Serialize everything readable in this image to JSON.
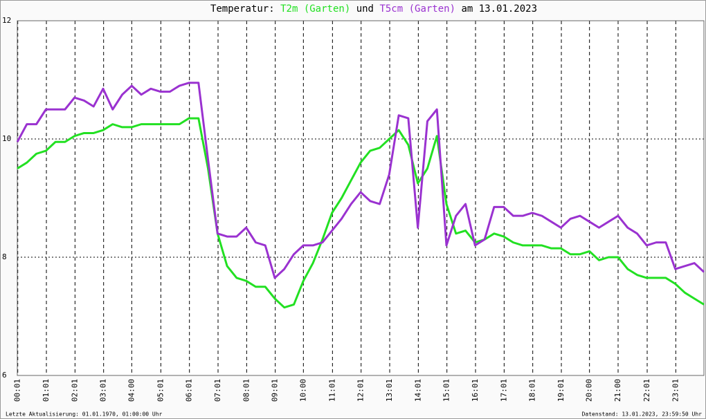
{
  "chart_data": {
    "type": "line",
    "title": "Temperatur:",
    "title_joiner": "und",
    "title_suffix": "am 13.01.2023",
    "footer_left": "Letzte Aktualisierung: 01.01.1970, 01:00:00 Uhr",
    "footer_right": "Datenstand: 13.01.2023, 23:59:50 Uhr",
    "x": [
      0,
      20,
      40,
      60,
      80,
      100,
      120,
      140,
      160,
      180,
      200,
      220,
      240,
      260,
      280,
      300,
      320,
      340,
      360,
      380,
      400,
      420,
      440,
      460,
      480,
      500,
      520,
      540,
      560,
      580,
      600,
      620,
      640,
      660,
      680,
      700,
      720,
      740,
      760,
      780,
      800,
      820,
      840,
      860,
      880,
      900,
      920,
      940,
      960,
      980,
      1000,
      1020,
      1040,
      1060,
      1080,
      1100,
      1120,
      1140,
      1160,
      1180,
      1200,
      1220,
      1240,
      1260,
      1280,
      1300,
      1320,
      1340,
      1360,
      1380,
      1400,
      1420,
      1440
    ],
    "series": [
      {
        "name": "T2m (Garten)",
        "color": "#22e022",
        "values": [
          9.5,
          9.6,
          9.75,
          9.8,
          9.95,
          9.95,
          10.05,
          10.1,
          10.1,
          10.15,
          10.25,
          10.2,
          10.2,
          10.25,
          10.25,
          10.25,
          10.25,
          10.25,
          10.35,
          10.35,
          9.5,
          8.4,
          7.85,
          7.65,
          7.6,
          7.5,
          7.5,
          7.3,
          7.15,
          7.2,
          7.6,
          7.9,
          8.3,
          8.75,
          9.0,
          9.3,
          9.6,
          9.8,
          9.85,
          10.0,
          10.15,
          9.9,
          9.25,
          9.5,
          10.05,
          8.9,
          8.4,
          8.45,
          8.25,
          8.3,
          8.4,
          8.35,
          8.25,
          8.2,
          8.2,
          8.2,
          8.15,
          8.15,
          8.05,
          8.05,
          8.1,
          7.95,
          8.0,
          8.0,
          7.8,
          7.7,
          7.65,
          7.65,
          7.65,
          7.55,
          7.4,
          7.3,
          7.2
        ]
      },
      {
        "name": "T5cm (Garten)",
        "color": "#9a32d0",
        "values": [
          9.95,
          10.25,
          10.25,
          10.5,
          10.5,
          10.5,
          10.7,
          10.65,
          10.55,
          10.85,
          10.5,
          10.75,
          10.9,
          10.75,
          10.85,
          10.8,
          10.8,
          10.9,
          10.95,
          10.95,
          9.65,
          8.4,
          8.35,
          8.35,
          8.5,
          8.25,
          8.2,
          7.65,
          7.8,
          8.05,
          8.2,
          8.2,
          8.25,
          8.45,
          8.65,
          8.9,
          9.1,
          8.95,
          8.9,
          9.4,
          10.4,
          10.35,
          8.5,
          10.3,
          10.5,
          8.2,
          8.7,
          8.9,
          8.2,
          8.3,
          8.85,
          8.85,
          8.7,
          8.7,
          8.75,
          8.7,
          8.6,
          8.5,
          8.65,
          8.7,
          8.6,
          8.5,
          8.6,
          8.7,
          8.5,
          8.4,
          8.2,
          8.25,
          8.25,
          7.8,
          7.85,
          7.9,
          7.75
        ]
      }
    ],
    "xlim": [
      0,
      1440
    ],
    "xticks": [
      {
        "value": 1,
        "label": "00:01"
      },
      {
        "value": 61,
        "label": "01:01"
      },
      {
        "value": 121,
        "label": "02:01"
      },
      {
        "value": 181,
        "label": "03:01"
      },
      {
        "value": 240,
        "label": "04:00"
      },
      {
        "value": 301,
        "label": "05:01"
      },
      {
        "value": 361,
        "label": "06:01"
      },
      {
        "value": 421,
        "label": "07:01"
      },
      {
        "value": 481,
        "label": "08:01"
      },
      {
        "value": 541,
        "label": "09:01"
      },
      {
        "value": 600,
        "label": "10:00"
      },
      {
        "value": 661,
        "label": "11:01"
      },
      {
        "value": 721,
        "label": "12:01"
      },
      {
        "value": 781,
        "label": "13:01"
      },
      {
        "value": 841,
        "label": "14:01"
      },
      {
        "value": 901,
        "label": "15:01"
      },
      {
        "value": 961,
        "label": "16:01"
      },
      {
        "value": 1021,
        "label": "17:01"
      },
      {
        "value": 1081,
        "label": "18:01"
      },
      {
        "value": 1141,
        "label": "19:01"
      },
      {
        "value": 1200,
        "label": "20:00"
      },
      {
        "value": 1260,
        "label": "21:00"
      },
      {
        "value": 1321,
        "label": "22:01"
      },
      {
        "value": 1381,
        "label": "23:01"
      }
    ],
    "ylim": [
      6,
      12
    ],
    "yticks": [
      6,
      8,
      10,
      12
    ],
    "grid": true
  }
}
